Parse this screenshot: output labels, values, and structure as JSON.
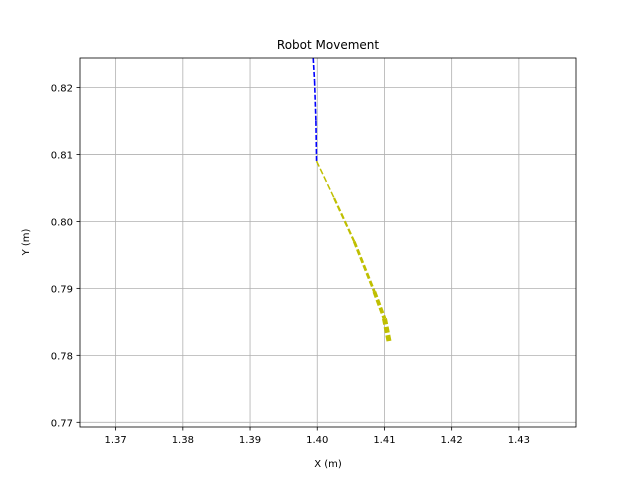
{
  "chart_data": {
    "type": "line",
    "title": "Robot Movement",
    "xlabel": "X (m)",
    "ylabel": "Y (m)",
    "xlim": [
      1.3647,
      1.4385
    ],
    "ylim": [
      0.7693,
      0.8244
    ],
    "xticks": [
      1.37,
      1.38,
      1.39,
      1.4,
      1.41,
      1.42,
      1.43
    ],
    "xtick_labels": [
      "1.37",
      "1.38",
      "1.39",
      "1.40",
      "1.41",
      "1.42",
      "1.43"
    ],
    "yticks": [
      0.77,
      0.78,
      0.79,
      0.8,
      0.81,
      0.82
    ],
    "ytick_labels": [
      "0.77",
      "0.78",
      "0.79",
      "0.80",
      "0.81",
      "0.82"
    ],
    "grid": true,
    "series": [
      {
        "color": "#0000ff",
        "style": "dashed",
        "points": [
          [
            1.3994,
            0.8244
          ],
          [
            1.3996,
            0.821
          ],
          [
            1.3998,
            0.815
          ],
          [
            1.3999,
            0.809
          ]
        ]
      },
      {
        "color": "#bfbf00",
        "style": "dashed",
        "points": [
          [
            1.3999,
            0.809
          ],
          [
            1.4025,
            0.8035
          ],
          [
            1.4055,
            0.797
          ],
          [
            1.4085,
            0.7895
          ],
          [
            1.41,
            0.7855
          ],
          [
            1.4107,
            0.782
          ]
        ]
      }
    ]
  }
}
